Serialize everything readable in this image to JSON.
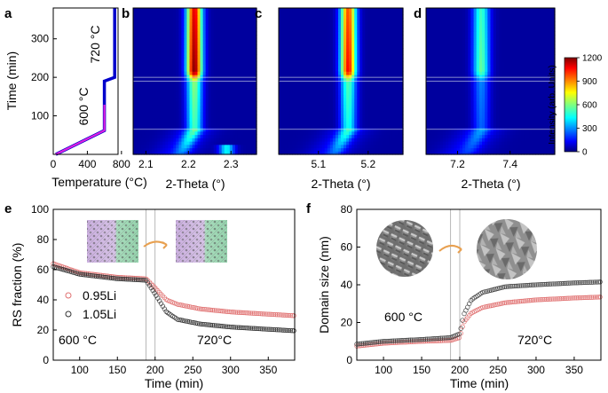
{
  "chart_data": [
    {
      "panel": "a",
      "type": "line",
      "xlabel": "Temperature (°C)",
      "ylabel": "Time (min)",
      "xlim": [
        0,
        760
      ],
      "ylim": [
        0,
        380
      ],
      "xticks": [
        0,
        400,
        800
      ],
      "yticks": [
        100,
        200,
        300
      ],
      "annotations": [
        "600 °C",
        "720 °C"
      ],
      "series": [
        {
          "color": "#0000cc",
          "x": [
            30,
            600,
            600,
            720,
            720
          ],
          "y": [
            0,
            62,
            190,
            200,
            380
          ]
        },
        {
          "color": "#e020e0",
          "x": [
            30,
            600,
            600,
            720,
            720
          ],
          "y": [
            0,
            62,
            190,
            200,
            380
          ]
        }
      ]
    },
    {
      "panel": "b",
      "type": "heatmap",
      "xlabel": "2-Theta (°)",
      "xlim": [
        2.07,
        2.36
      ],
      "xticks": [
        2.1,
        2.2,
        2.3
      ],
      "ylim": [
        0,
        380
      ],
      "peak_center": 2.214,
      "peak_intensity_max": 1200,
      "secondary_peak": {
        "center": 2.29,
        "time_range": [
          0,
          25
        ]
      },
      "time_markers": [
        65,
        190,
        200
      ]
    },
    {
      "panel": "c",
      "type": "heatmap",
      "xlabel": "2-Theta (°)",
      "xlim": [
        5.02,
        5.27
      ],
      "xticks": [
        5.1,
        5.2
      ],
      "ylim": [
        0,
        380
      ],
      "peak_center": 5.16,
      "peak_intensity_max": 1050,
      "time_markers": [
        65,
        190,
        200
      ]
    },
    {
      "panel": "d",
      "type": "heatmap",
      "xlabel": "2-Theta (°)",
      "xlim": [
        7.08,
        7.57
      ],
      "xticks": [
        7.2,
        7.4
      ],
      "ylim": [
        0,
        380
      ],
      "peak_center": 7.29,
      "peak_intensity_max": 550,
      "time_markers": [
        65,
        190,
        200
      ],
      "colorbar": {
        "label": "Intensity (arb. Units)",
        "ticks": [
          0,
          300,
          600,
          900,
          1200
        ]
      }
    },
    {
      "panel": "e",
      "type": "scatter",
      "xlabel": "Time (min)",
      "ylabel": "RS fraction (%)",
      "xlim": [
        65,
        385
      ],
      "ylim": [
        0,
        100
      ],
      "xticks": [
        100,
        150,
        200,
        250,
        300,
        350
      ],
      "yticks": [
        0,
        20,
        40,
        60,
        80,
        100
      ],
      "annotations": [
        "600 °C",
        "720°C"
      ],
      "vlines": [
        188,
        200
      ],
      "series": [
        {
          "name": "0.95Li",
          "color": "#e07070",
          "x": [
            65,
            100,
            150,
            188,
            200,
            215,
            230,
            260,
            300,
            350,
            385
          ],
          "y": [
            64,
            58,
            55,
            54,
            48,
            40,
            37,
            34,
            32,
            30.5,
            29.5
          ]
        },
        {
          "name": "1.05Li",
          "color": "#333333",
          "x": [
            65,
            100,
            150,
            188,
            200,
            215,
            230,
            260,
            300,
            350,
            385
          ],
          "y": [
            62,
            57,
            54,
            53,
            44,
            32,
            27,
            24,
            22,
            20.5,
            19.5
          ]
        }
      ]
    },
    {
      "panel": "f",
      "type": "scatter",
      "xlabel": "Time (min)",
      "ylabel": "Domain size (nm)",
      "xlim": [
        65,
        385
      ],
      "ylim": [
        0,
        80
      ],
      "xticks": [
        100,
        150,
        200,
        250,
        300,
        350
      ],
      "yticks": [
        0,
        20,
        40,
        60,
        80
      ],
      "annotations": [
        "600 °C",
        "720°C"
      ],
      "vlines": [
        188,
        200
      ],
      "series": [
        {
          "color": "#e07070",
          "x": [
            65,
            100,
            150,
            188,
            200,
            205,
            215,
            230,
            260,
            300,
            350,
            385
          ],
          "y": [
            7.5,
            9,
            10,
            10.5,
            12,
            20,
            25,
            28,
            30.5,
            32,
            33,
            33.5
          ]
        },
        {
          "color": "#444444",
          "x": [
            65,
            100,
            150,
            188,
            200,
            205,
            215,
            230,
            260,
            300,
            350,
            385
          ],
          "y": [
            8.5,
            10,
            11,
            12,
            14,
            24,
            32,
            36,
            39,
            40,
            41,
            41.5
          ]
        }
      ]
    }
  ]
}
